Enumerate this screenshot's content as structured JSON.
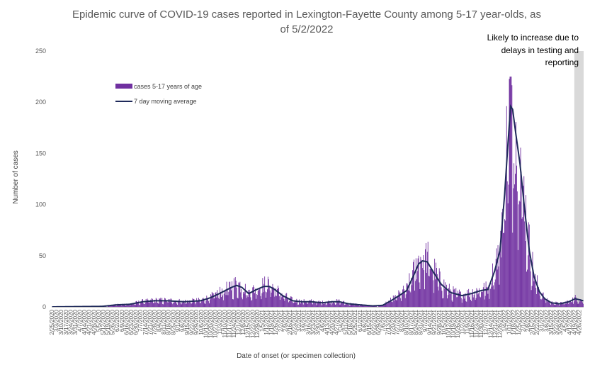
{
  "chart_data": {
    "type": "bar",
    "title_line1": "Epidemic curve of COVID-19 cases reported in Lexington-Fayette County among 5-17 year-olds, as",
    "title_line2": "of 5/2/2022",
    "xlabel": "Date of onset (or specimen collection)",
    "ylabel": "Number of cases",
    "ylim": [
      0,
      250
    ],
    "yticks": [
      0,
      50,
      100,
      150,
      200,
      250
    ],
    "x_start": "2020-02-25",
    "x_end": "2022-05-02",
    "x_tick_labels": [
      "2/25/2020",
      "3/3/2020",
      "3/10/2020",
      "3/17/2020",
      "3/24/2020",
      "3/31/2020",
      "4/7/2020",
      "4/14/2020",
      "4/21/2020",
      "4/28/2020",
      "5/5/2020",
      "5/12/2020",
      "5/19/2020",
      "5/26/2020",
      "6/2/2020",
      "6/9/2020",
      "6/16/2020",
      "6/23/2020",
      "6/30/2020",
      "7/7/2020",
      "7/14/2020",
      "7/21/2020",
      "7/28/2020",
      "8/4/2020",
      "8/11/2020",
      "8/18/2020",
      "8/25/2020",
      "9/1/2020",
      "9/8/2020",
      "9/15/2020",
      "9/22/2020",
      "9/29/2020",
      "10/6/2020",
      "10/13/2020",
      "10/20/2020",
      "10/27/2020",
      "11/3/2020",
      "11/10/2020",
      "11/17/2020",
      "11/24/2020",
      "12/1/2020",
      "12/8/2020",
      "12/15/2020",
      "12/22/2020",
      "12/29/2020",
      "1/5/2021",
      "1/12/2021",
      "1/19/2021",
      "1/26/2021",
      "2/2/2021",
      "2/9/2021",
      "2/16/2021",
      "2/23/2021",
      "3/2/2021",
      "3/9/2021",
      "3/16/2021",
      "3/23/2021",
      "3/30/2021",
      "4/6/2021",
      "4/13/2021",
      "4/20/2021",
      "4/27/2021",
      "5/4/2021",
      "5/11/2021",
      "5/18/2021",
      "5/25/2021",
      "6/1/2021",
      "6/8/2021",
      "6/15/2021",
      "6/22/2021",
      "6/29/2021",
      "7/6/2021",
      "7/13/2021",
      "7/20/2021",
      "7/27/2021",
      "8/3/2021",
      "8/10/2021",
      "8/17/2021",
      "8/24/2021",
      "8/31/2021",
      "9/7/2021",
      "9/14/2021",
      "9/21/2021",
      "9/28/2021",
      "10/5/2021",
      "10/12/2021",
      "10/19/2021",
      "10/26/2021",
      "11/2/2021",
      "11/9/2021",
      "11/16/2021",
      "11/23/2021",
      "11/30/2021",
      "12/7/2021",
      "12/14/2021",
      "12/21/2021",
      "12/28/2021",
      "1/4/2022",
      "1/11/2022",
      "1/18/2022",
      "1/25/2022",
      "2/1/2022",
      "2/8/2022",
      "2/15/2022",
      "2/22/2022",
      "3/1/2022",
      "3/8/2022",
      "3/15/2022",
      "3/22/2022",
      "3/29/2022",
      "4/5/2022",
      "4/12/2022",
      "4/19/2022",
      "4/26/2022"
    ],
    "series": [
      {
        "name": "cases 5-17 years of age",
        "type": "bar",
        "color": "#7030A0"
      },
      {
        "name": "7 day moving average",
        "type": "line",
        "color": "#1F2A5A"
      }
    ],
    "moving_average_anchors": [
      [
        "2020-02-25",
        0
      ],
      [
        "2020-04-10",
        0.3
      ],
      [
        "2020-05-10",
        0.5
      ],
      [
        "2020-06-01",
        2
      ],
      [
        "2020-06-20",
        2.5
      ],
      [
        "2020-07-10",
        5
      ],
      [
        "2020-07-28",
        6
      ],
      [
        "2020-08-15",
        6
      ],
      [
        "2020-09-10",
        5
      ],
      [
        "2020-10-05",
        6
      ],
      [
        "2020-10-20",
        9
      ],
      [
        "2020-11-05",
        14
      ],
      [
        "2020-11-20",
        19
      ],
      [
        "2020-11-28",
        21
      ],
      [
        "2020-12-06",
        19
      ],
      [
        "2020-12-16",
        13
      ],
      [
        "2020-12-28",
        17
      ],
      [
        "2021-01-08",
        20
      ],
      [
        "2021-01-16",
        20
      ],
      [
        "2021-01-24",
        17
      ],
      [
        "2021-02-05",
        11
      ],
      [
        "2021-02-20",
        6
      ],
      [
        "2021-03-05",
        5
      ],
      [
        "2021-03-20",
        5
      ],
      [
        "2021-04-05",
        4
      ],
      [
        "2021-04-20",
        5
      ],
      [
        "2021-05-01",
        5
      ],
      [
        "2021-05-15",
        3
      ],
      [
        "2021-06-01",
        2
      ],
      [
        "2021-06-20",
        1
      ],
      [
        "2021-07-05",
        1.5
      ],
      [
        "2021-07-20",
        7
      ],
      [
        "2021-08-01",
        12
      ],
      [
        "2021-08-10",
        16
      ],
      [
        "2021-08-20",
        30
      ],
      [
        "2021-08-28",
        42
      ],
      [
        "2021-09-03",
        45
      ],
      [
        "2021-09-10",
        44
      ],
      [
        "2021-09-20",
        33
      ],
      [
        "2021-10-01",
        22
      ],
      [
        "2021-10-15",
        14
      ],
      [
        "2021-11-01",
        11
      ],
      [
        "2021-11-15",
        13
      ],
      [
        "2021-11-30",
        16
      ],
      [
        "2021-12-10",
        17
      ],
      [
        "2021-12-20",
        35
      ],
      [
        "2021-12-28",
        55
      ],
      [
        "2022-01-04",
        110
      ],
      [
        "2022-01-09",
        160
      ],
      [
        "2022-01-13",
        196
      ],
      [
        "2022-01-16",
        193
      ],
      [
        "2022-01-21",
        168
      ],
      [
        "2022-01-27",
        140
      ],
      [
        "2022-02-03",
        95
      ],
      [
        "2022-02-10",
        55
      ],
      [
        "2022-02-17",
        30
      ],
      [
        "2022-02-25",
        15
      ],
      [
        "2022-03-05",
        8
      ],
      [
        "2022-03-15",
        4
      ],
      [
        "2022-03-28",
        3
      ],
      [
        "2022-04-10",
        5
      ],
      [
        "2022-04-20",
        8
      ],
      [
        "2022-05-02",
        6
      ]
    ],
    "grid": false,
    "legend_position": "top-left",
    "annotation": {
      "text_lines": [
        "Likely to increase due to",
        "delays in testing and",
        "reporting"
      ],
      "shaded_from": "2022-04-19",
      "shaded_to": "2022-05-02",
      "shade_color": "#D9D9D9"
    }
  }
}
